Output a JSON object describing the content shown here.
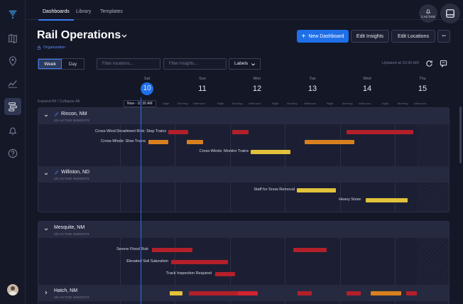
{
  "nav": {
    "tabs": [
      "Dashboards",
      "Library",
      "Templates"
    ]
  },
  "alerts": {
    "label": "2 ACTIVE"
  },
  "header": {
    "title": "Rail Operations",
    "org": "Organization",
    "buttons": {
      "new": "New Dashboard",
      "edit_insights": "Edit Insights",
      "edit_locations": "Edit Locations",
      "more": "•••"
    }
  },
  "toolbar": {
    "week": "Week",
    "day": "Day",
    "locations_placeholder": "Filter locations...",
    "insights_placeholder": "Filter insights...",
    "labels": "Labels",
    "updated": "Updated at 10:30 AM"
  },
  "timeline": {
    "expand": "Expand All / Collapse All",
    "now": "Now - 10:30 AM",
    "days": [
      {
        "name": "Sat",
        "date": "10",
        "today": true
      },
      {
        "name": "Sun",
        "date": "11"
      },
      {
        "name": "Mon",
        "date": "12"
      },
      {
        "name": "Tue",
        "date": "13"
      },
      {
        "name": "Wed",
        "date": "14"
      },
      {
        "name": "Thu",
        "date": "15"
      }
    ],
    "slots": [
      "Night",
      "Morning",
      "Afternoon",
      "Night",
      "Morning",
      "Afternoon",
      "Night",
      "Morning",
      "Afternoon",
      "Night",
      "Morning",
      "Afternoon",
      "Night",
      "Morning",
      "Afternoon"
    ]
  },
  "groups": [
    {
      "name": "Rincon, NM",
      "sub": "2/5 ACTIVE INSIGHTS",
      "pinned": true,
      "rows": [
        "Cross-Wind Derailment Risk: Stop Trains",
        "Cross-Winds: Slow Trains",
        "Cross-Winds: Monitor Trains"
      ]
    },
    {
      "name": "Williston, ND",
      "sub": "2/5 ACTIVE INSIGHTS",
      "pinned": true,
      "rows": [
        "Staff for Snow Removal",
        "Heavy Snow"
      ]
    },
    {
      "name": "Mesquite, NM",
      "sub": "2/5 ACTIVE INSIGHTS",
      "pinned": false,
      "rows": [
        "Severe Flood Risk",
        "Elevated Soil Saturation",
        "Track Inspection Required"
      ]
    },
    {
      "name": "Hatch, NM",
      "sub": "2/5 ACTIVE INSIGHTS",
      "pinned": false,
      "rows": []
    }
  ],
  "colors": {
    "accent": "#1f6fe8",
    "red": "#b3202a",
    "orange": "#d8801f",
    "yellow": "#e2c23b"
  }
}
